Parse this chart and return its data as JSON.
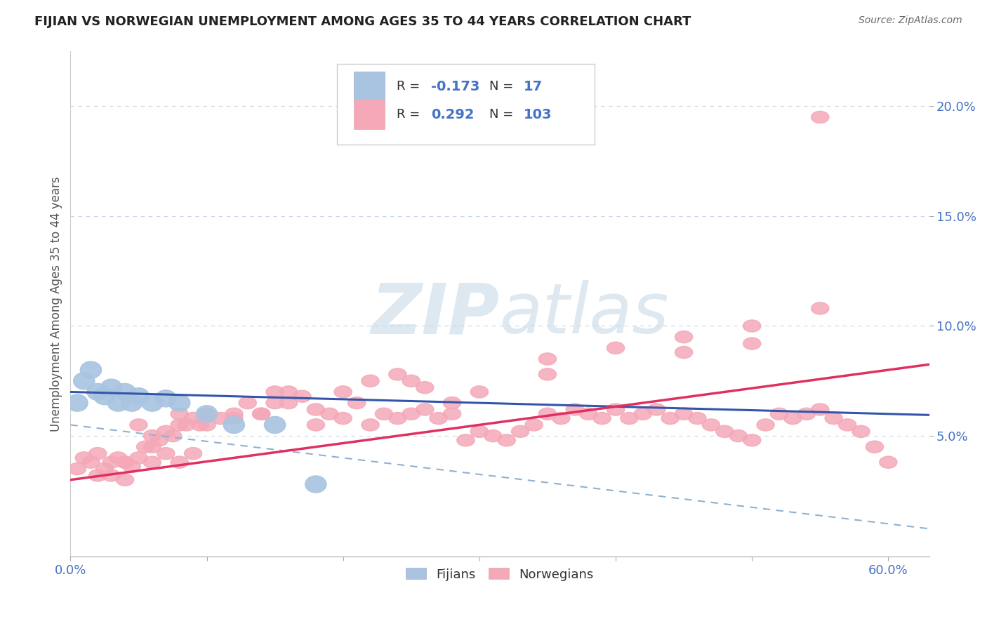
{
  "title": "FIJIAN VS NORWEGIAN UNEMPLOYMENT AMONG AGES 35 TO 44 YEARS CORRELATION CHART",
  "source": "Source: ZipAtlas.com",
  "ylabel": "Unemployment Among Ages 35 to 44 years",
  "xlim": [
    0.0,
    0.63
  ],
  "ylim": [
    -0.005,
    0.225
  ],
  "ytick_vals": [
    0.05,
    0.1,
    0.15,
    0.2
  ],
  "ytick_labels": [
    "5.0%",
    "10.0%",
    "15.0%",
    "20.0%"
  ],
  "xtick_vals": [
    0.0,
    0.1,
    0.2,
    0.3,
    0.4,
    0.5,
    0.6
  ],
  "xtick_labels": [
    "0.0%",
    "",
    "",
    "",
    "",
    "",
    "60.0%"
  ],
  "fijian_R": -0.173,
  "fijian_N": 17,
  "norwegian_R": 0.292,
  "norwegian_N": 103,
  "fijian_color": "#a8c4e0",
  "norwegian_color": "#f4a8b8",
  "fijian_line_color": "#3355aa",
  "norwegian_line_color": "#e03060",
  "dashed_line_color": "#90b0d0",
  "grid_color": "#c8d8e8",
  "watermark_color": "#dde8f0",
  "axis_tick_color": "#4472c4",
  "legend_color": "#4472c4",
  "fijian_x": [
    0.005,
    0.01,
    0.015,
    0.02,
    0.025,
    0.03,
    0.035,
    0.04,
    0.045,
    0.05,
    0.06,
    0.07,
    0.08,
    0.1,
    0.12,
    0.15,
    0.18
  ],
  "fijian_y": [
    0.065,
    0.075,
    0.08,
    0.07,
    0.068,
    0.072,
    0.065,
    0.07,
    0.065,
    0.068,
    0.065,
    0.067,
    0.065,
    0.06,
    0.055,
    0.055,
    0.028
  ],
  "norwegian_x": [
    0.005,
    0.01,
    0.015,
    0.02,
    0.025,
    0.03,
    0.035,
    0.04,
    0.045,
    0.05,
    0.055,
    0.06,
    0.065,
    0.07,
    0.075,
    0.08,
    0.085,
    0.09,
    0.095,
    0.1,
    0.11,
    0.12,
    0.13,
    0.14,
    0.15,
    0.16,
    0.17,
    0.18,
    0.19,
    0.2,
    0.21,
    0.22,
    0.23,
    0.24,
    0.25,
    0.26,
    0.27,
    0.28,
    0.29,
    0.3,
    0.31,
    0.32,
    0.33,
    0.34,
    0.35,
    0.36,
    0.37,
    0.38,
    0.39,
    0.4,
    0.41,
    0.42,
    0.43,
    0.44,
    0.45,
    0.46,
    0.47,
    0.48,
    0.49,
    0.5,
    0.51,
    0.52,
    0.53,
    0.54,
    0.55,
    0.56,
    0.57,
    0.58,
    0.59,
    0.6,
    0.02,
    0.03,
    0.04,
    0.05,
    0.06,
    0.07,
    0.08,
    0.09,
    0.1,
    0.12,
    0.14,
    0.16,
    0.18,
    0.2,
    0.22,
    0.24,
    0.26,
    0.28,
    0.3,
    0.35,
    0.4,
    0.45,
    0.5,
    0.55,
    0.5,
    0.45,
    0.35,
    0.25,
    0.15,
    0.08,
    0.06,
    0.04,
    0.55
  ],
  "norwegian_y": [
    0.035,
    0.04,
    0.038,
    0.042,
    0.035,
    0.038,
    0.04,
    0.038,
    0.036,
    0.055,
    0.045,
    0.05,
    0.048,
    0.052,
    0.05,
    0.055,
    0.055,
    0.058,
    0.055,
    0.06,
    0.058,
    0.06,
    0.065,
    0.06,
    0.065,
    0.07,
    0.068,
    0.055,
    0.06,
    0.058,
    0.065,
    0.055,
    0.06,
    0.058,
    0.06,
    0.062,
    0.058,
    0.06,
    0.048,
    0.052,
    0.05,
    0.048,
    0.052,
    0.055,
    0.06,
    0.058,
    0.062,
    0.06,
    0.058,
    0.062,
    0.058,
    0.06,
    0.062,
    0.058,
    0.06,
    0.058,
    0.055,
    0.052,
    0.05,
    0.048,
    0.055,
    0.06,
    0.058,
    0.06,
    0.062,
    0.058,
    0.055,
    0.052,
    0.045,
    0.038,
    0.032,
    0.032,
    0.03,
    0.04,
    0.038,
    0.042,
    0.038,
    0.042,
    0.055,
    0.058,
    0.06,
    0.065,
    0.062,
    0.07,
    0.075,
    0.078,
    0.072,
    0.065,
    0.07,
    0.085,
    0.09,
    0.095,
    0.1,
    0.108,
    0.092,
    0.088,
    0.078,
    0.075,
    0.07,
    0.06,
    0.045,
    0.038,
    0.195
  ],
  "fijian_trend_x": [
    0.0,
    0.6
  ],
  "fijian_trend_y": [
    0.07,
    0.06
  ],
  "norwegian_trend_x": [
    0.0,
    0.6
  ],
  "norwegian_trend_y": [
    0.03,
    0.08
  ],
  "dashed_trend_x": [
    0.0,
    0.6
  ],
  "dashed_trend_y": [
    0.055,
    0.01
  ]
}
